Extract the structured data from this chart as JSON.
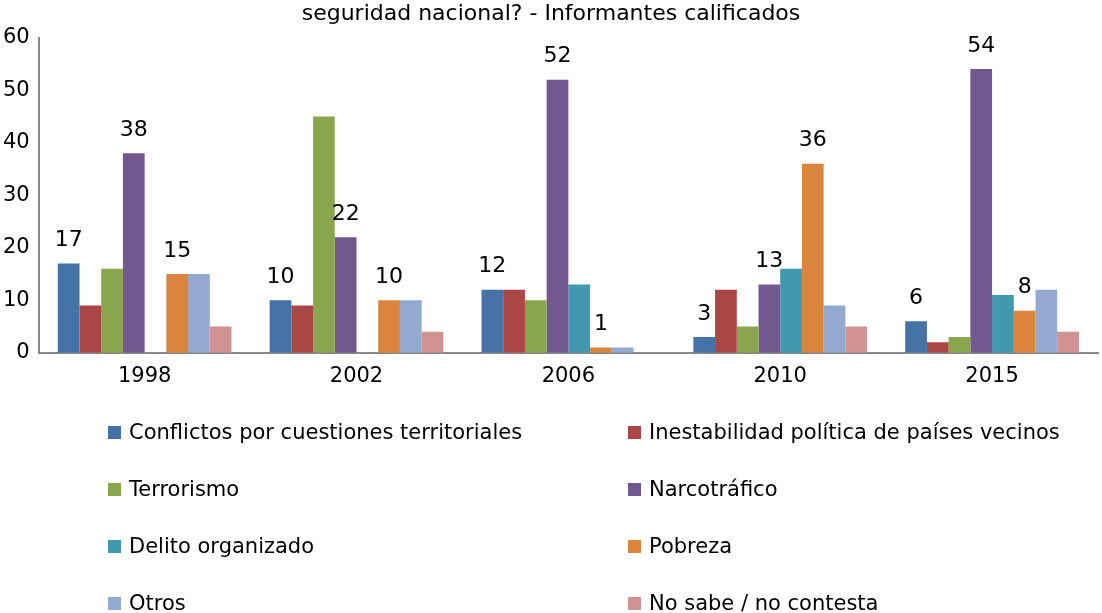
{
  "chart_data": {
    "type": "bar",
    "title": "seguridad nacional? - Informantes calificados",
    "categories": [
      "1998",
      "2002",
      "2006",
      "2010",
      "2015"
    ],
    "series": [
      {
        "name": "Conflictos por cuestiones territoriales",
        "color": "#4572a7",
        "values": [
          17,
          10,
          12,
          3,
          6
        ],
        "value_labels": [
          "17",
          "10",
          "12",
          "3",
          "6"
        ]
      },
      {
        "name": "Inestabilidad política de países vecinos",
        "color": "#aa4643",
        "values": [
          9,
          9,
          12,
          12,
          2
        ]
      },
      {
        "name": "Terrorismo",
        "color": "#89a54e",
        "values": [
          16,
          45,
          10,
          5,
          3
        ]
      },
      {
        "name": "Narcotráfico",
        "color": "#71588f",
        "values": [
          38,
          22,
          52,
          13,
          54
        ],
        "value_labels": [
          "38",
          "22",
          "52",
          "13",
          "54"
        ]
      },
      {
        "name": "Delito organizado",
        "color": "#4198af",
        "values": [
          null,
          null,
          13,
          16,
          11
        ]
      },
      {
        "name": "Pobreza",
        "color": "#db843d",
        "values": [
          15,
          10,
          1,
          36,
          8
        ],
        "value_labels": [
          "15",
          "10",
          "1",
          "36",
          "8"
        ]
      },
      {
        "name": "Otros",
        "color": "#93a9cf",
        "values": [
          15,
          10,
          1,
          9,
          12
        ]
      },
      {
        "name": "No sabe / no contesta",
        "color": "#d19392",
        "values": [
          5,
          4,
          null,
          5,
          4
        ]
      }
    ],
    "ylim": [
      0,
      60
    ],
    "yticks": [
      0,
      10,
      20,
      30,
      40,
      50,
      60
    ],
    "grid": false,
    "legend": "bottom"
  }
}
